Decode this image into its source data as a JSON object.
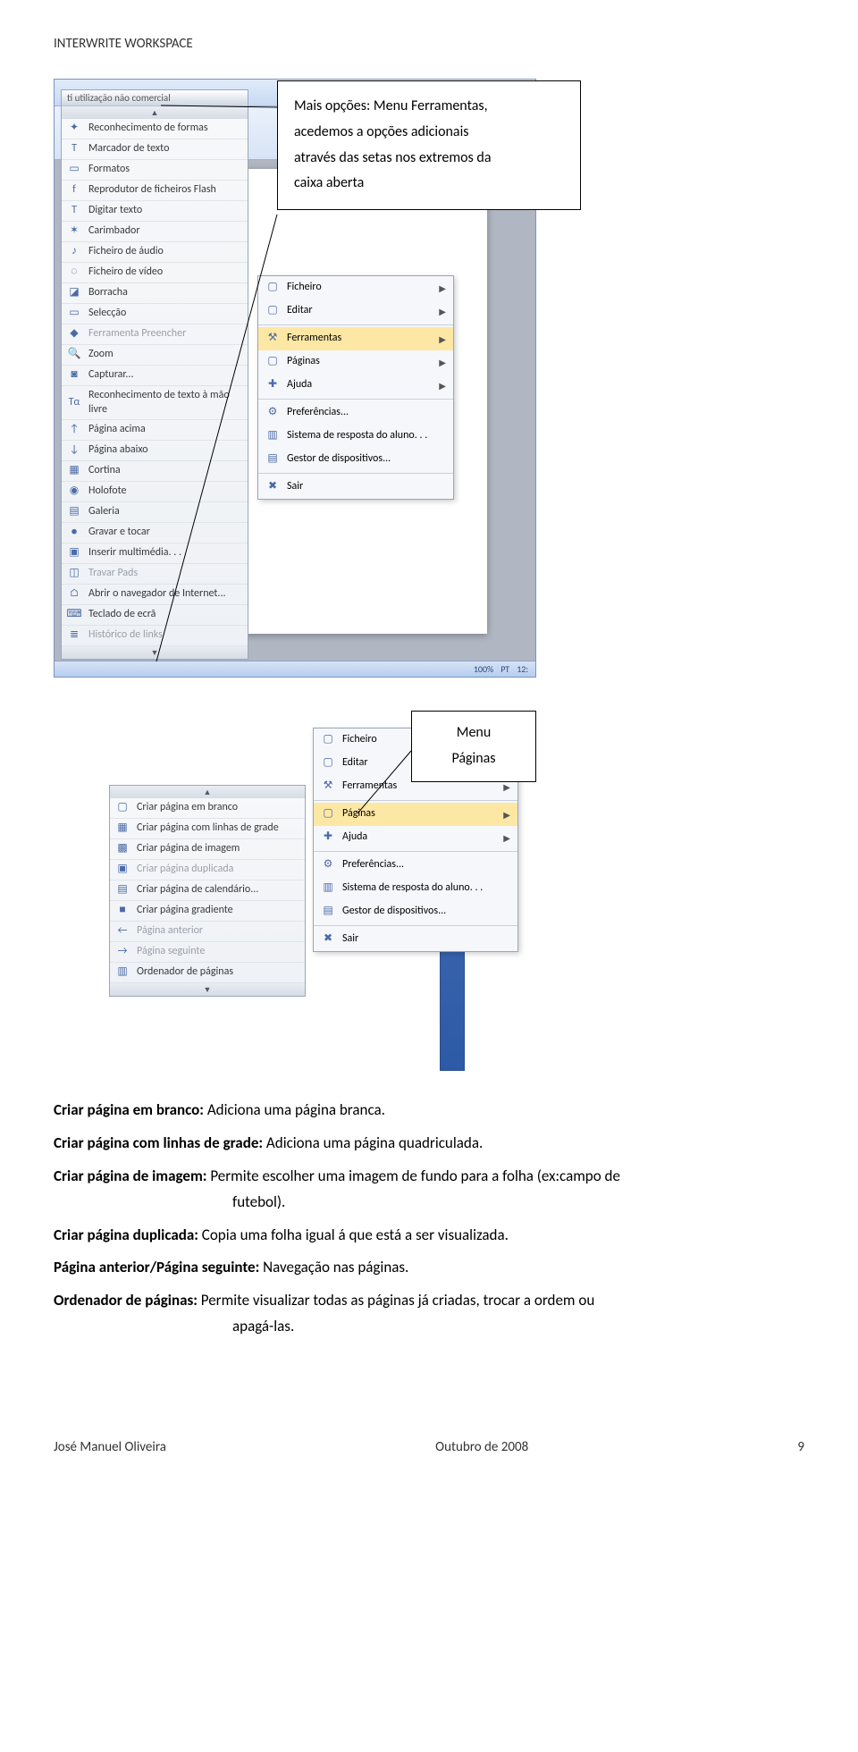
{
  "doc": {
    "header": "INTERWRITE WORKSPACE",
    "callout1_l1": "Mais opções: Menu Ferramentas,",
    "callout1_l2": "acedemos a opções adicionais",
    "callout1_l3": "através das setas nos extremos da",
    "callout1_l4": "caixa aberta",
    "callout2_l1": "Menu",
    "callout2_l2": "Páginas"
  },
  "panel1": {
    "titlebar": "ti utilização não comercial",
    "items": [
      {
        "icon": "✦",
        "label": "Reconhecimento de formas"
      },
      {
        "icon": "T",
        "label": "Marcador de texto"
      },
      {
        "icon": "▭",
        "label": "Formatos"
      },
      {
        "icon": "f",
        "label": "Reprodutor de ficheiros Flash"
      },
      {
        "icon": "T",
        "label": "Digitar texto"
      },
      {
        "icon": "✶",
        "label": "Carimbador"
      },
      {
        "icon": "♪",
        "label": "Ficheiro de áudio"
      },
      {
        "icon": "◌",
        "label": "Ficheiro de vídeo"
      },
      {
        "icon": "◪",
        "label": "Borracha"
      },
      {
        "icon": "▭",
        "label": "Selecção"
      },
      {
        "icon": "◆",
        "label": "Ferramenta Preencher",
        "dim": true
      },
      {
        "icon": "🔍",
        "label": "Zoom"
      },
      {
        "icon": "◙",
        "label": "Capturar..."
      },
      {
        "icon": "Tα",
        "label": "Reconhecimento de texto à mão livre"
      },
      {
        "icon": "↑",
        "label": "Página acima"
      },
      {
        "icon": "↓",
        "label": "Página abaixo"
      },
      {
        "icon": "▦",
        "label": "Cortina"
      },
      {
        "icon": "◉",
        "label": "Holofote"
      },
      {
        "icon": "▤",
        "label": "Galeria"
      },
      {
        "icon": "●",
        "label": "Gravar e tocar"
      },
      {
        "icon": "▣",
        "label": "Inserir multimédia. . ."
      },
      {
        "icon": "◫",
        "label": "Travar Pads",
        "dim": true
      },
      {
        "icon": "⌂",
        "label": "Abrir o navegador de Internet..."
      },
      {
        "icon": "⌨",
        "label": "Teclado de ecrã"
      },
      {
        "icon": "≣",
        "label": "Histórico de links",
        "dim": true
      }
    ]
  },
  "sub1": {
    "items": [
      {
        "icon": "▢",
        "label": "Ficheiro",
        "arrow": true
      },
      {
        "icon": "▢",
        "label": "Editar",
        "arrow": true
      },
      {
        "type": "sep"
      },
      {
        "icon": "⚒",
        "label": "Ferramentas",
        "hl": true,
        "arrow": true
      },
      {
        "icon": "▢",
        "label": "Páginas",
        "arrow": true
      },
      {
        "icon": "✚",
        "label": "Ajuda",
        "arrow": true
      },
      {
        "type": "sep"
      },
      {
        "icon": "⚙",
        "label": "Preferências..."
      },
      {
        "icon": "▥",
        "label": "Sistema de resposta do aluno. . ."
      },
      {
        "icon": "▤",
        "label": "Gestor de dispositivos..."
      },
      {
        "type": "sep"
      },
      {
        "icon": "✖",
        "label": "Sair"
      }
    ]
  },
  "panel2": {
    "items": [
      {
        "icon": "▢",
        "label": "Criar página em branco"
      },
      {
        "icon": "▦",
        "label": "Criar página com linhas de grade"
      },
      {
        "icon": "▩",
        "label": "Criar página de imagem"
      },
      {
        "icon": "▣",
        "label": "Criar página duplicada",
        "dim": true
      },
      {
        "icon": "▤",
        "label": "Criar página de calendário..."
      },
      {
        "icon": "■",
        "label": "Criar página gradiente"
      },
      {
        "icon": "←",
        "label": "Página anterior",
        "dim": true
      },
      {
        "icon": "→",
        "label": "Página seguinte",
        "dim": true
      },
      {
        "icon": "▥",
        "label": "Ordenador de páginas"
      }
    ]
  },
  "sub2": {
    "items": [
      {
        "icon": "▢",
        "label": "Ficheiro",
        "arrow": true
      },
      {
        "icon": "▢",
        "label": "Editar",
        "arrow": true
      },
      {
        "icon": "⚒",
        "label": "Ferramentas",
        "arrow": true
      },
      {
        "type": "sep"
      },
      {
        "icon": "▢",
        "label": "Páginas",
        "hl": true,
        "arrow": true
      },
      {
        "icon": "✚",
        "label": "Ajuda",
        "arrow": true
      },
      {
        "type": "sep"
      },
      {
        "icon": "⚙",
        "label": "Preferências..."
      },
      {
        "icon": "▥",
        "label": "Sistema de resposta do aluno. . ."
      },
      {
        "icon": "▤",
        "label": "Gestor de dispositivos..."
      },
      {
        "type": "sep"
      },
      {
        "icon": "✖",
        "label": "Sair"
      }
    ]
  },
  "wordbg": {
    "zoom": "100%",
    "lang": "PT",
    "time": "12:"
  },
  "body": {
    "p1_b": "Criar página em branco: ",
    "p1_t": "Adiciona uma página branca.",
    "p2_b": "Criar página com linhas de grade: ",
    "p2_t": "Adiciona uma página quadriculada.",
    "p3_b": "Criar página de imagem: ",
    "p3_t": "Permite escolher uma imagem de fundo para a folha (ex:campo de",
    "p3_t2": "futebol).",
    "p4_b": "Criar página duplicada: ",
    "p4_t": "Copia uma folha igual á que está a ser visualizada.",
    "p5_b": "Página anterior/Página seguinte: ",
    "p5_t": "Navegação nas páginas.",
    "p6_b": "Ordenador de páginas: ",
    "p6_t": "Permite visualizar todas as páginas já criadas, trocar a ordem ou",
    "p6_t2": "apagá-las."
  },
  "footer": {
    "author": "José Manuel Oliveira",
    "date": "Outubro de 2008",
    "page": "9"
  }
}
